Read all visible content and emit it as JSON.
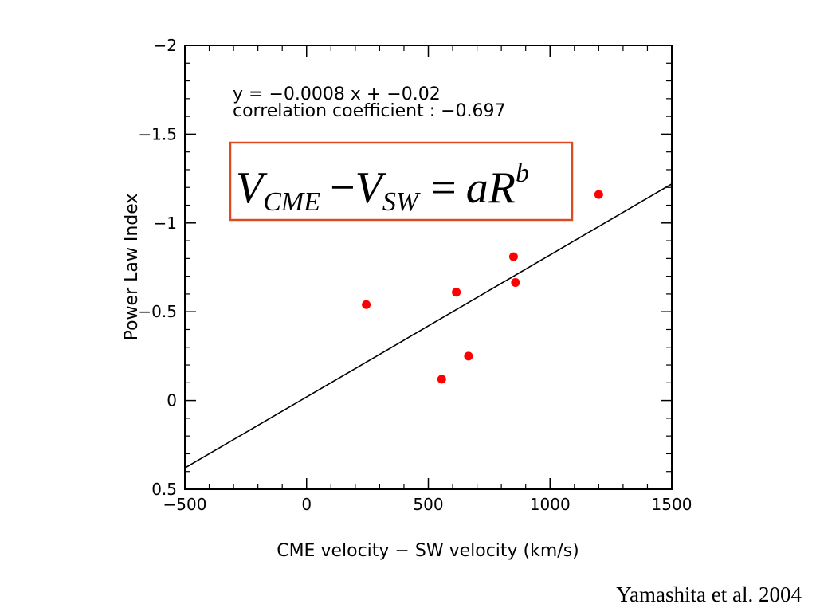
{
  "chart_data": {
    "type": "scatter",
    "xlabel": "CME velocity − SW velocity (km/s)",
    "ylabel": "Power Law Index",
    "xlim": [
      -500,
      1500
    ],
    "ylim": [
      0.5,
      -2
    ],
    "y_inverted": true,
    "x_ticks": [
      -500,
      0,
      500,
      1000,
      1500
    ],
    "x_tick_labels": [
      "−500",
      "0",
      "500",
      "1000",
      "1500"
    ],
    "y_ticks": [
      -2,
      -1.5,
      -1,
      -0.5,
      0,
      0.5
    ],
    "y_tick_labels": [
      "−2",
      "−1.5",
      "−1",
      "−0.5",
      "0",
      "0.5"
    ],
    "points": {
      "color": "#ff0000",
      "x": [
        245,
        555,
        615,
        665,
        850,
        858,
        1200
      ],
      "y": [
        -0.54,
        -0.12,
        -0.61,
        -0.25,
        -0.81,
        -0.665,
        -1.16
      ]
    },
    "fit_line": {
      "slope": -0.0008,
      "intercept": -0.02,
      "color": "#000000"
    },
    "annotations": {
      "equation": "y = −0.0008 x +  −0.02",
      "correlation": "correlation coefficient : −0.697"
    },
    "formula_box": {
      "border_color": "#e04a1f",
      "V": "V",
      "sub_cme": "CME",
      "minus": "−",
      "sub_sw": "SW",
      "equals": "=",
      "aR": "aR",
      "sup_b": "b"
    }
  },
  "citation": "Yamashita et al. 2004"
}
